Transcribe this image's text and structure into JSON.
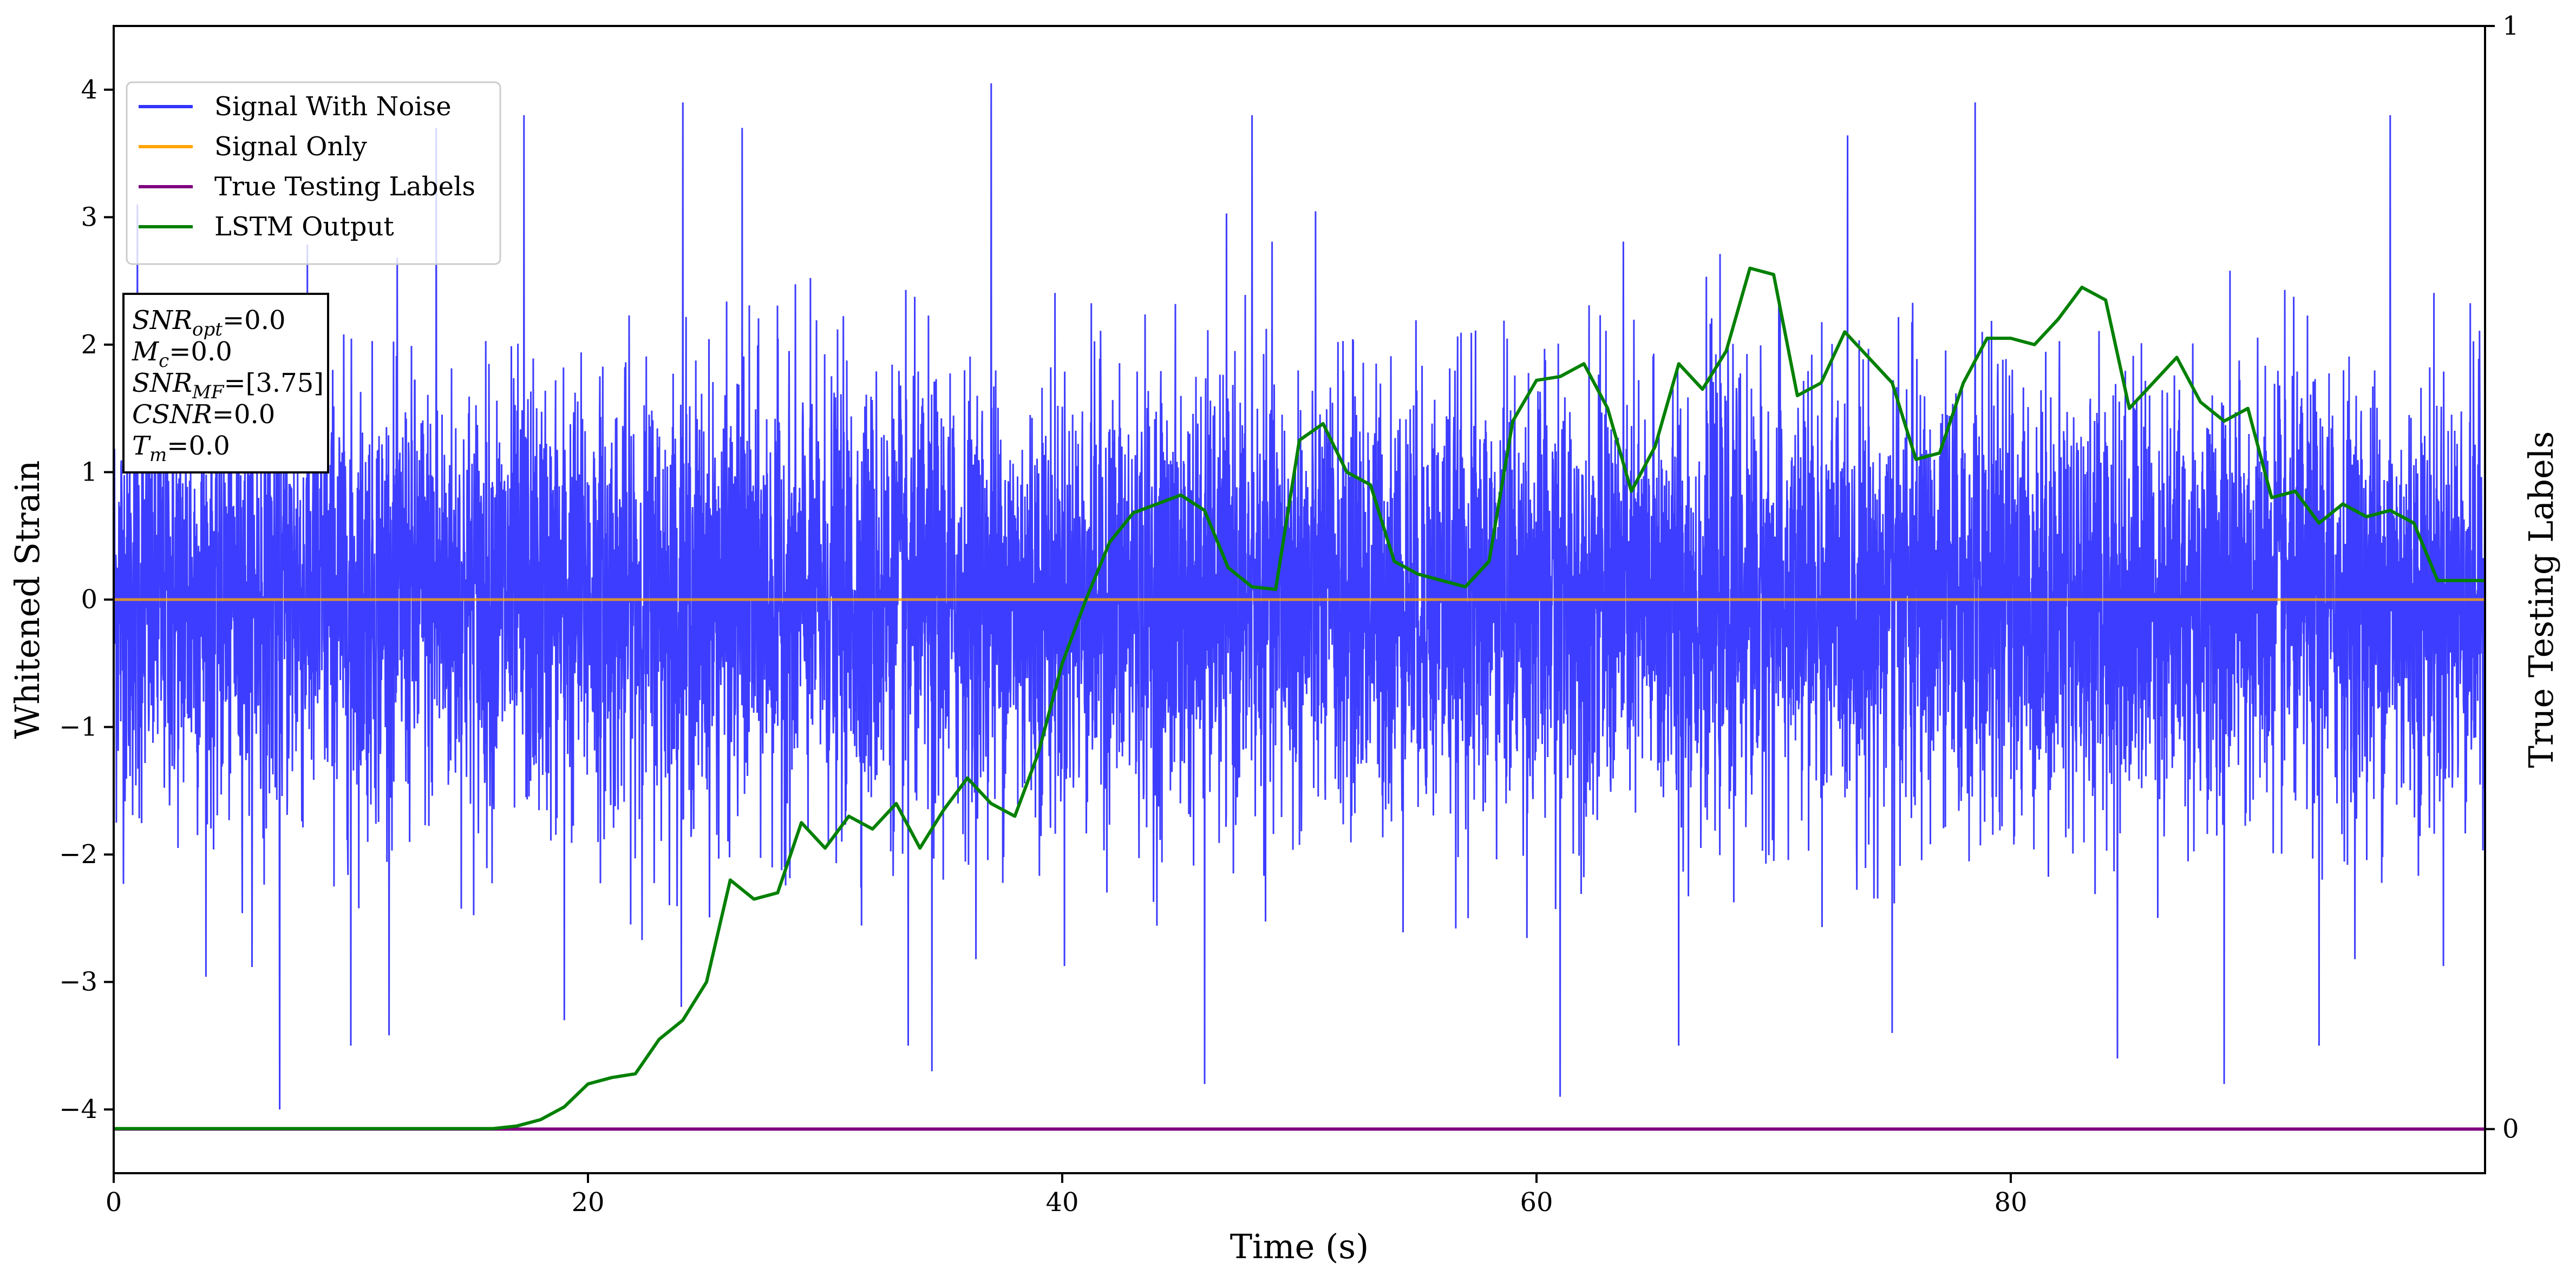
{
  "chart_data": {
    "type": "line",
    "title": "",
    "xlabel": "Time (s)",
    "ylabel": "Whitened Strain",
    "y2label": "True Testing Labels",
    "xlim": [
      0,
      100
    ],
    "ylim": [
      -4.5,
      4.5
    ],
    "y2lim": [
      -0.04,
      1
    ],
    "x_ticks": [
      "0",
      "20",
      "40",
      "60",
      "80"
    ],
    "y_ticks": [
      "4",
      "3",
      "2",
      "1",
      "0",
      "−1",
      "−2",
      "−3",
      "−4"
    ],
    "y2_ticks": [
      "1",
      "0"
    ],
    "legend_position": "upper-left",
    "grid": false,
    "info_box": {
      "lines": [
        {
          "sym": "SNR",
          "sub": "opt",
          "value": "=0.0"
        },
        {
          "sym": "M",
          "sub": "c",
          "value": "=0.0"
        },
        {
          "sym": "SNR",
          "sub": "MF",
          "value": "=[3.75]"
        },
        {
          "sym": "CSNR",
          "sub": "",
          "value": "=0.0"
        },
        {
          "sym": "T",
          "sub": "m",
          "value": "=0.0"
        }
      ]
    },
    "series": [
      {
        "name": "Signal With Noise",
        "color": "#3333ff",
        "kind": "noise",
        "description_level": "whitened noise band approx ±1.4, peaks to about ±4",
        "peaks": [
          {
            "x": 1.0,
            "y": 3.1
          },
          {
            "x": 7.0,
            "y": -4.0
          },
          {
            "x": 10.0,
            "y": -3.5
          },
          {
            "x": 13.6,
            "y": 3.7
          },
          {
            "x": 17.3,
            "y": 3.8
          },
          {
            "x": 19.0,
            "y": -3.3
          },
          {
            "x": 24.0,
            "y": 3.9
          },
          {
            "x": 26.5,
            "y": 3.7
          },
          {
            "x": 33.5,
            "y": -3.5
          },
          {
            "x": 34.5,
            "y": -3.7
          },
          {
            "x": 37.0,
            "y": 4.05
          },
          {
            "x": 46.0,
            "y": -3.8
          },
          {
            "x": 48.0,
            "y": 3.8
          },
          {
            "x": 61.0,
            "y": -3.9
          },
          {
            "x": 66.0,
            "y": -3.5
          },
          {
            "x": 75.0,
            "y": -3.4
          },
          {
            "x": 78.5,
            "y": 3.9
          },
          {
            "x": 84.5,
            "y": -3.6
          },
          {
            "x": 89.0,
            "y": -3.8
          },
          {
            "x": 93.0,
            "y": -3.5
          },
          {
            "x": 96.0,
            "y": 3.8
          }
        ]
      },
      {
        "name": "Signal Only",
        "color": "#ffa500",
        "x": [
          0,
          100
        ],
        "y": [
          0,
          0
        ]
      },
      {
        "name": "True Testing Labels",
        "color": "#800080",
        "axis": "right",
        "x": [
          0,
          100
        ],
        "y": [
          0,
          0
        ]
      },
      {
        "name": "LSTM Output",
        "color": "#008000",
        "axis": "left",
        "x": [
          0,
          16,
          17,
          18,
          19,
          20,
          21,
          22,
          23,
          24,
          25,
          26,
          27,
          28,
          29,
          30,
          31,
          32,
          33,
          34,
          35,
          36,
          37,
          38,
          39,
          40,
          41,
          42,
          43,
          44,
          45,
          46,
          47,
          48,
          49,
          50,
          51,
          52,
          53,
          54,
          55,
          56,
          57,
          58,
          59,
          60,
          61,
          62,
          63,
          64,
          65,
          66,
          67,
          68,
          69,
          70,
          71,
          72,
          73,
          74,
          75,
          76,
          77,
          78,
          79,
          80,
          81,
          82,
          83,
          84,
          85,
          86,
          87,
          88,
          89,
          90,
          91,
          92,
          93,
          94,
          95,
          96,
          97,
          98,
          99,
          100
        ],
        "y": [
          -4.15,
          -4.15,
          -4.13,
          -4.08,
          -3.98,
          -3.8,
          -3.75,
          -3.72,
          -3.45,
          -3.3,
          -3.0,
          -2.2,
          -2.35,
          -2.3,
          -1.75,
          -1.95,
          -1.7,
          -1.8,
          -1.6,
          -1.95,
          -1.65,
          -1.4,
          -1.6,
          -1.7,
          -1.2,
          -0.5,
          0.0,
          0.45,
          0.68,
          0.75,
          0.82,
          0.7,
          0.25,
          0.1,
          0.08,
          1.25,
          1.38,
          1.0,
          0.9,
          0.3,
          0.2,
          0.15,
          0.1,
          0.3,
          1.4,
          1.72,
          1.75,
          1.85,
          1.5,
          0.85,
          1.2,
          1.85,
          1.65,
          1.95,
          2.6,
          2.55,
          1.6,
          1.7,
          2.1,
          1.9,
          1.7,
          1.1,
          1.15,
          1.7,
          2.05,
          2.05,
          2.0,
          2.2,
          2.45,
          2.35,
          1.5,
          1.7,
          1.9,
          1.55,
          1.4,
          1.5,
          0.8,
          0.85,
          0.6,
          0.75,
          0.65,
          0.7,
          0.6,
          0.15,
          0.15,
          0.15
        ]
      }
    ]
  }
}
